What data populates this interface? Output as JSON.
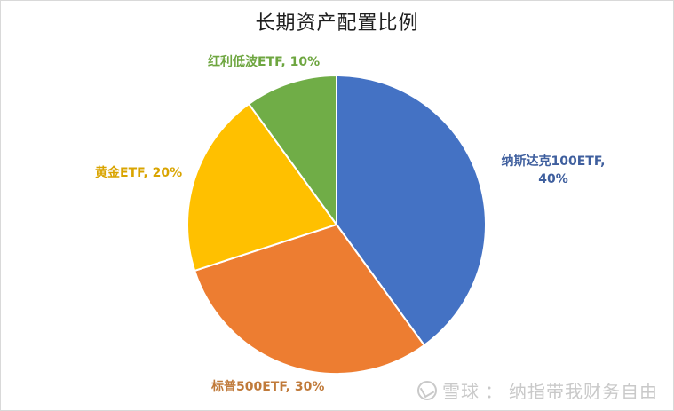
{
  "chart_data": {
    "type": "pie",
    "title": "长期资产配置比例",
    "start_angle_deg": 0,
    "direction": "clockwise",
    "slices": [
      {
        "name": "纳斯达克100ETF",
        "value": 40,
        "label": "纳斯达克100ETF, 40%",
        "color": "#4472c4"
      },
      {
        "name": "标普500ETF",
        "value": 30,
        "label": "标普500ETF, 30%",
        "color": "#ed7d31"
      },
      {
        "name": "黄金ETF",
        "value": 20,
        "label": "黄金ETF, 20%",
        "color": "#ffc000"
      },
      {
        "name": "红利低波ETF",
        "value": 10,
        "label": "红利低波ETF, 10%",
        "color": "#70ad47"
      }
    ],
    "categories": [
      "纳斯达克100ETF",
      "标普500ETF",
      "黄金ETF",
      "红利低波ETF"
    ],
    "values": [
      40,
      30,
      20,
      10
    ],
    "unit": "%",
    "legend": "none (data labels outside slices)"
  },
  "labels": {
    "nasdaq_line1": "纳斯达克100ETF,",
    "nasdaq_line2": "40%",
    "sp500": "标普500ETF, 30%",
    "gold": "黄金ETF, 20%",
    "dividend": "红利低波ETF, 10%"
  },
  "label_colors": {
    "nasdaq": "#3f5f9e",
    "sp500": "#c07a3a",
    "gold": "#d9a400",
    "dividend": "#6ea640"
  },
  "watermark": {
    "site": "雪球",
    "separator": "：",
    "author": "纳指带我财务自由"
  }
}
